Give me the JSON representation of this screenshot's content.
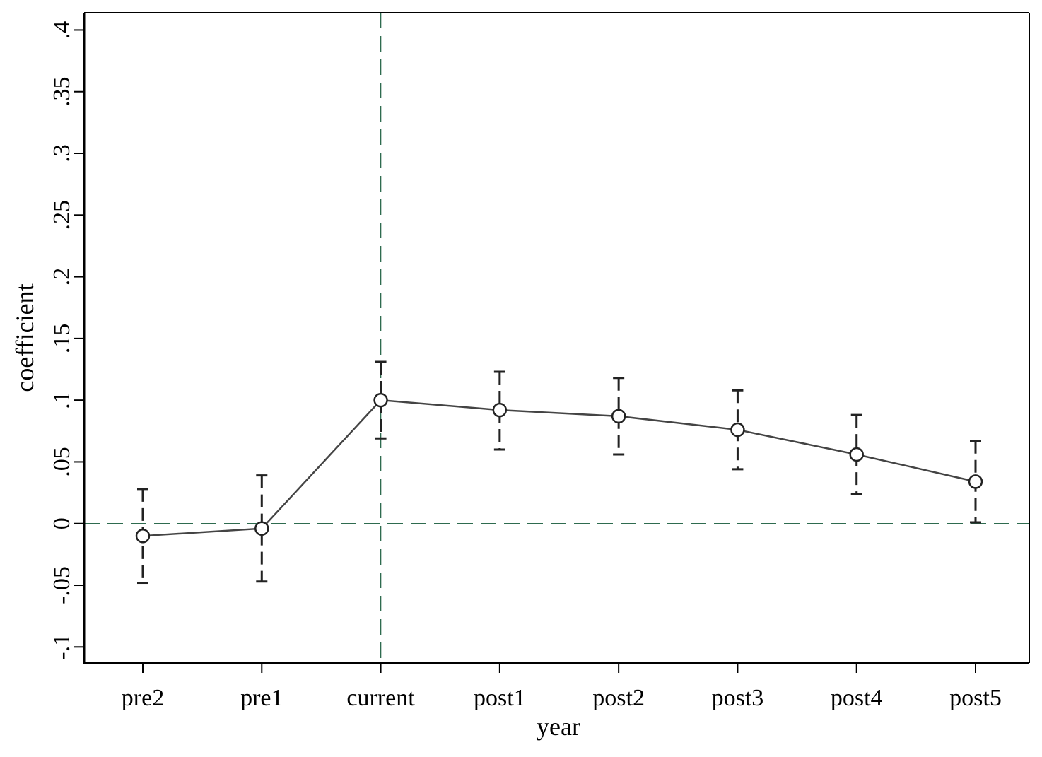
{
  "chart_data": {
    "type": "line",
    "title": "",
    "xlabel": "year",
    "ylabel": "coefficient",
    "categories": [
      "pre2",
      "pre1",
      "current",
      "post1",
      "post2",
      "post3",
      "post4",
      "post5"
    ],
    "y_ticks": [
      -0.1,
      -0.05,
      0,
      0.05,
      0.1,
      0.15,
      0.2,
      0.25,
      0.3,
      0.35,
      0.4
    ],
    "y_tick_labels": [
      "-.1",
      "-.05",
      "0",
      ".05",
      ".1",
      ".15",
      ".2",
      ".25",
      ".3",
      ".35",
      ".4"
    ],
    "ylim": [
      -0.113,
      0.414
    ],
    "series": [
      {
        "values": [
          -0.01,
          -0.004,
          0.1,
          0.092,
          0.087,
          0.076,
          0.056,
          0.034
        ],
        "ci_lower": [
          -0.048,
          -0.047,
          0.069,
          0.06,
          0.056,
          0.044,
          0.024,
          0.001
        ],
        "ci_upper": [
          0.028,
          0.039,
          0.131,
          0.123,
          0.118,
          0.108,
          0.088,
          0.067
        ],
        "marker": "hollow-circle",
        "line_color": "#444444",
        "errorbar_style": "dashed"
      }
    ],
    "reference_lines": {
      "horizontal_y": 0,
      "vertical_at_category": "current",
      "color": "#2e6b4f",
      "style": "dashed"
    },
    "grid": false,
    "legend": "none"
  }
}
